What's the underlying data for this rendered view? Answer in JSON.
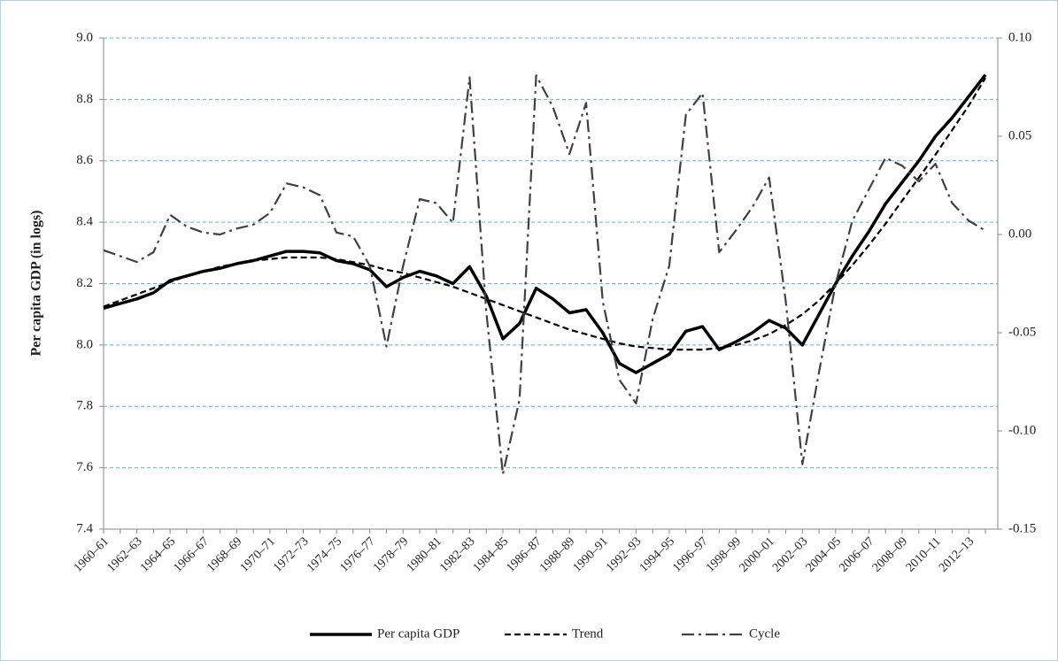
{
  "chart_data": {
    "type": "line",
    "y_label": "Per capita GDP (in logs)",
    "categories": [
      "1960–61",
      null,
      "1962–63",
      null,
      "1964–65",
      null,
      "1966–67",
      null,
      "1968–69",
      null,
      "1970–71",
      null,
      "1972–73",
      null,
      "1974–75",
      null,
      "1976–77",
      null,
      "1978–79",
      null,
      "1980–81",
      null,
      "1982–83",
      null,
      "1984–85",
      null,
      "1986–87",
      null,
      "1988–89",
      null,
      "1990–91",
      null,
      "1992–93",
      null,
      "1994–95",
      null,
      "1996–97",
      null,
      "1998–99",
      null,
      "2000–01",
      null,
      "2002–03",
      null,
      "2004–05",
      null,
      "2006–07",
      null,
      "2008–09",
      null,
      "2010–11",
      null,
      "2012–13",
      null
    ],
    "ylim": [
      7.4,
      9.0
    ],
    "yticks": [
      7.4,
      7.6,
      7.8,
      {
        "value": 8.0,
        "label": "8.0"
      },
      8.2,
      8.4,
      8.6,
      8.8,
      {
        "value": 9.0,
        "label": "9.0"
      }
    ],
    "y2lim": [
      -0.15,
      0.1
    ],
    "y2ticks": [
      {
        "value": -0.15,
        "label": "-0.15"
      },
      {
        "value": -0.1,
        "label": "-0.10"
      },
      -0.05,
      {
        "value": 0,
        "label": "0.00"
      },
      0.05,
      {
        "value": 0.1,
        "label": "0.10"
      }
    ],
    "grid": true,
    "legend": "bottom",
    "series": [
      {
        "name": "Per capita GDP",
        "color": "#000000",
        "dash": "solid",
        "values": [
          8.12,
          8.135,
          8.15,
          8.17,
          8.21,
          8.225,
          8.24,
          8.25,
          8.265,
          8.275,
          8.29,
          8.305,
          8.305,
          8.3,
          8.275,
          8.265,
          8.245,
          8.19,
          8.22,
          8.24,
          8.225,
          8.2,
          8.255,
          8.16,
          8.02,
          8.07,
          8.185,
          8.15,
          8.105,
          8.115,
          8.04,
          7.94,
          7.91,
          7.94,
          7.97,
          8.045,
          8.06,
          7.985,
          8.01,
          8.04,
          8.08,
          8.055,
          8.0,
          8.1,
          8.2,
          8.29,
          8.37,
          8.46,
          8.53,
          8.6,
          8.68,
          8.74,
          8.81,
          8.88
        ]
      },
      {
        "name": "Trend",
        "color": "#000000",
        "dash": "dashed",
        "values": [
          8.125,
          8.145,
          8.165,
          8.185,
          8.205,
          8.225,
          8.24,
          8.255,
          8.265,
          8.275,
          8.28,
          8.285,
          8.285,
          8.285,
          8.28,
          8.27,
          8.26,
          8.245,
          8.235,
          8.22,
          8.205,
          8.19,
          8.17,
          8.15,
          8.13,
          8.11,
          8.09,
          8.07,
          8.05,
          8.035,
          8.02,
          8.005,
          7.995,
          7.99,
          7.985,
          7.985,
          7.985,
          7.99,
          8.0,
          8.015,
          8.035,
          8.065,
          8.1,
          8.145,
          8.2,
          8.26,
          8.325,
          8.395,
          8.47,
          8.545,
          8.62,
          8.7,
          8.78,
          8.87
        ]
      },
      {
        "name": "Cycle",
        "color": "#404040",
        "dash": "dashdot",
        "axis": "y2",
        "values": [
          -0.008,
          -0.011,
          -0.014,
          -0.009,
          0.01,
          0.004,
          0.001,
          0.0,
          0.003,
          0.005,
          0.011,
          0.026,
          0.024,
          0.02,
          0.001,
          -0.001,
          -0.016,
          -0.057,
          -0.016,
          0.018,
          0.016,
          0.006,
          0.08,
          -0.039,
          -0.122,
          -0.084,
          0.081,
          0.065,
          0.041,
          0.067,
          -0.034,
          -0.074,
          -0.086,
          -0.043,
          -0.016,
          0.061,
          0.072,
          -0.009,
          0.002,
          0.014,
          0.029,
          -0.034,
          -0.117,
          -0.07,
          -0.025,
          0.007,
          0.023,
          0.039,
          0.035,
          0.027,
          0.036,
          0.016,
          0.007,
          0.002
        ]
      }
    ]
  }
}
